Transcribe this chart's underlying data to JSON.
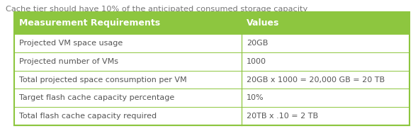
{
  "title": "Cache tier should have 10% of the anticipated consumed storage capacity",
  "title_fontsize": 8.2,
  "title_color": "#777777",
  "header": [
    "Measurement Requirements",
    "Values"
  ],
  "header_bg": "#8DC63F",
  "header_text_color": "#FFFFFF",
  "header_fontsize": 9.0,
  "rows": [
    [
      "Projected VM space usage",
      "20GB"
    ],
    [
      "Projected number of VMs",
      "1000"
    ],
    [
      "Total projected space consumption per VM",
      "20GB x 1000 = 20,000 GB = 20 TB"
    ],
    [
      "Target flash cache capacity percentage",
      "10%"
    ],
    [
      "Total flash cache capacity required",
      "20TB x .10 = 2 TB"
    ]
  ],
  "row_fontsize": 8.0,
  "row_text_color": "#555555",
  "border_color": "#8DC63F",
  "divider_color": "#8DC63F",
  "col_split": 0.575,
  "background_color": "#FFFFFF"
}
